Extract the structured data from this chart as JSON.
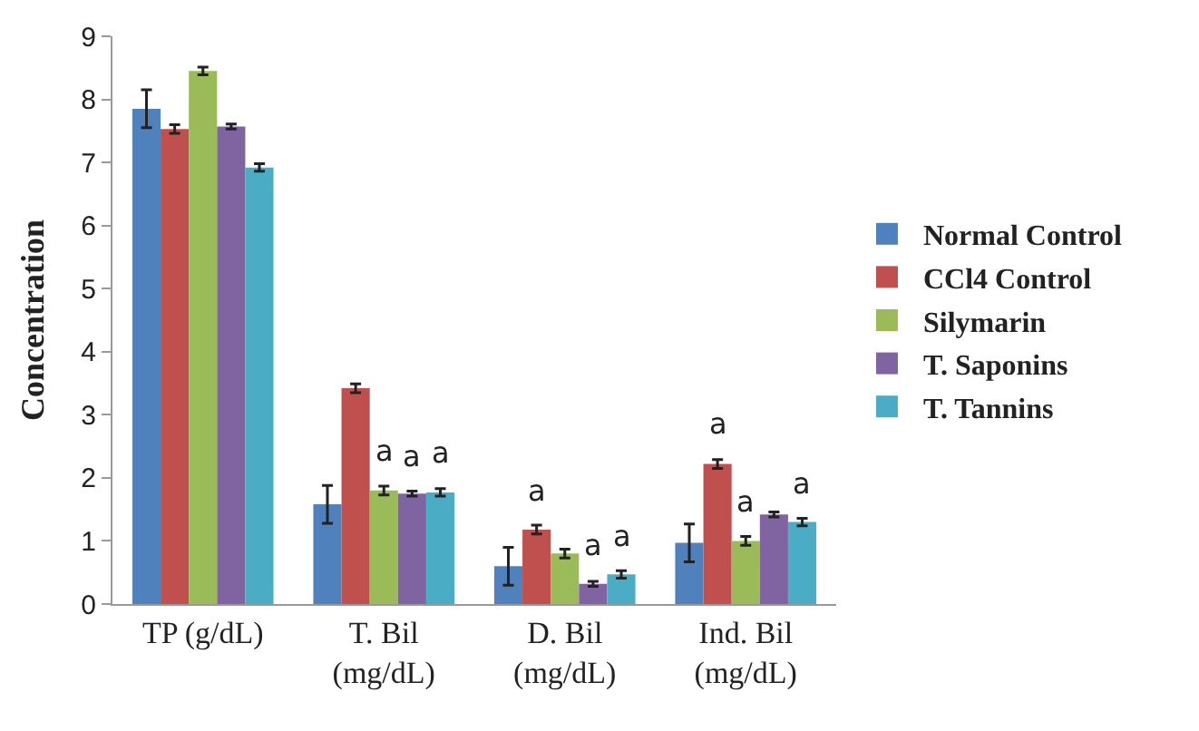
{
  "chart_data": {
    "type": "bar",
    "ylabel": "Concentration",
    "categories": [
      "TP (g/dL)",
      "T. Bil (mg/dL)",
      "D. Bil (mg/dL)",
      "Ind. Bil (mg/dL)"
    ],
    "series": [
      {
        "name": "Normal Control",
        "color": "#4f81bd",
        "values": [
          7.85,
          1.58,
          0.6,
          0.97
        ],
        "errors": [
          0.3,
          0.3,
          0.3,
          0.3
        ],
        "value_labels": [
          null,
          null,
          null,
          null
        ]
      },
      {
        "name": "CCl4 Control",
        "color": "#c0504d",
        "values": [
          7.53,
          3.42,
          1.18,
          2.22
        ],
        "errors": [
          0.07,
          0.07,
          0.07,
          0.07
        ],
        "value_labels": [
          null,
          null,
          "a",
          "a"
        ]
      },
      {
        "name": "Silymarin",
        "color": "#9bbb59",
        "values": [
          8.45,
          1.8,
          0.8,
          1.0
        ],
        "errors": [
          0.06,
          0.07,
          0.07,
          0.07
        ],
        "value_labels": [
          null,
          "a",
          null,
          "a"
        ]
      },
      {
        "name": "T. Saponins",
        "color": "#8064a2",
        "values": [
          7.57,
          1.75,
          0.32,
          1.42
        ],
        "errors": [
          0.04,
          0.04,
          0.04,
          0.04
        ],
        "value_labels": [
          null,
          "a",
          "a",
          null
        ]
      },
      {
        "name": "T. Tannins",
        "color": "#4bacc6",
        "values": [
          6.92,
          1.77,
          0.47,
          1.3
        ],
        "errors": [
          0.06,
          0.06,
          0.06,
          0.06
        ],
        "value_labels": [
          null,
          "a",
          "a",
          "a"
        ]
      }
    ],
    "ylim": [
      0,
      9
    ],
    "yticks": [
      0,
      1,
      2,
      3,
      4,
      5,
      6,
      7,
      8,
      9
    ],
    "legend": "right"
  }
}
